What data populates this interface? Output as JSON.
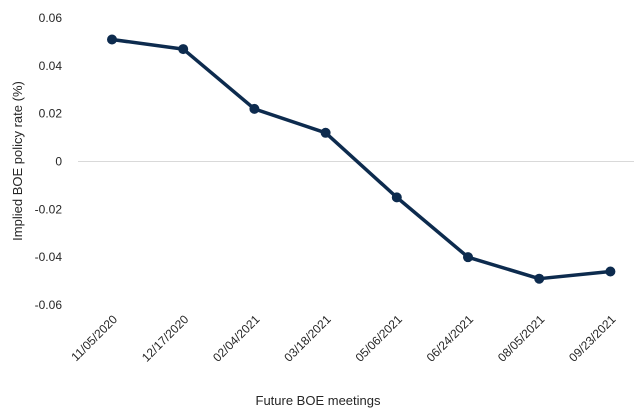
{
  "chart_data": {
    "type": "line",
    "title": "",
    "xlabel": "Future BOE meetings",
    "ylabel": "Implied BOE policy rate (%)",
    "ylim": [
      -0.06,
      0.06
    ],
    "yticks": [
      0.06,
      0.04,
      0.02,
      0,
      -0.02,
      -0.04,
      -0.06
    ],
    "ytick_labels": [
      "0.06",
      "0.04",
      "0.02",
      "0",
      "-0.02",
      "-0.04",
      "-0.06"
    ],
    "zero_line": true,
    "grid": false,
    "legend": "none",
    "categories": [
      "11/05/2020",
      "12/17/2020",
      "02/04/2021",
      "03/18/2021",
      "05/06/2021",
      "06/24/2021",
      "08/05/2021",
      "09/23/2021"
    ],
    "series": [
      {
        "values": [
          0.051,
          0.047,
          0.022,
          0.012,
          -0.015,
          -0.04,
          -0.049,
          -0.046
        ],
        "color": "#0d2b4e"
      }
    ]
  }
}
